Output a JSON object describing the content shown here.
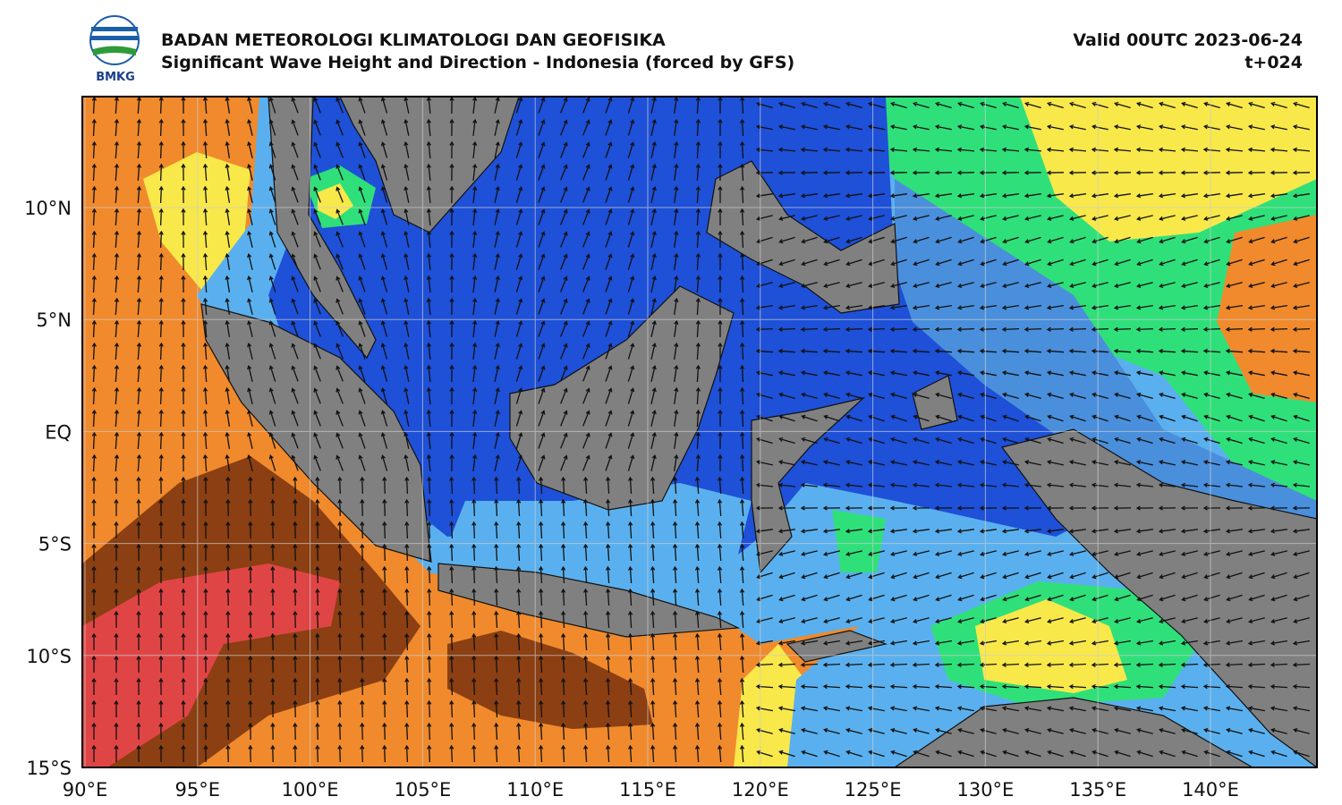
{
  "header": {
    "logo_text": "BMKG",
    "title": "BADAN METEOROLOGI KLIMATOLOGI DAN GEOFISIKA",
    "subtitle": "Significant Wave Height and Direction - Indonesia (forced by GFS)",
    "valid": "Valid 00UTC 2023-06-24",
    "step": "t+024"
  },
  "axes": {
    "lat_labels": [
      "10°N",
      "5°N",
      "EQ",
      "5°S",
      "10°S",
      "15°S"
    ],
    "lon_labels": [
      "90°E",
      "95°E",
      "100°E",
      "105°E",
      "110°E",
      "115°E",
      "120°E",
      "125°E",
      "130°E",
      "135°E",
      "140°E"
    ]
  }
}
